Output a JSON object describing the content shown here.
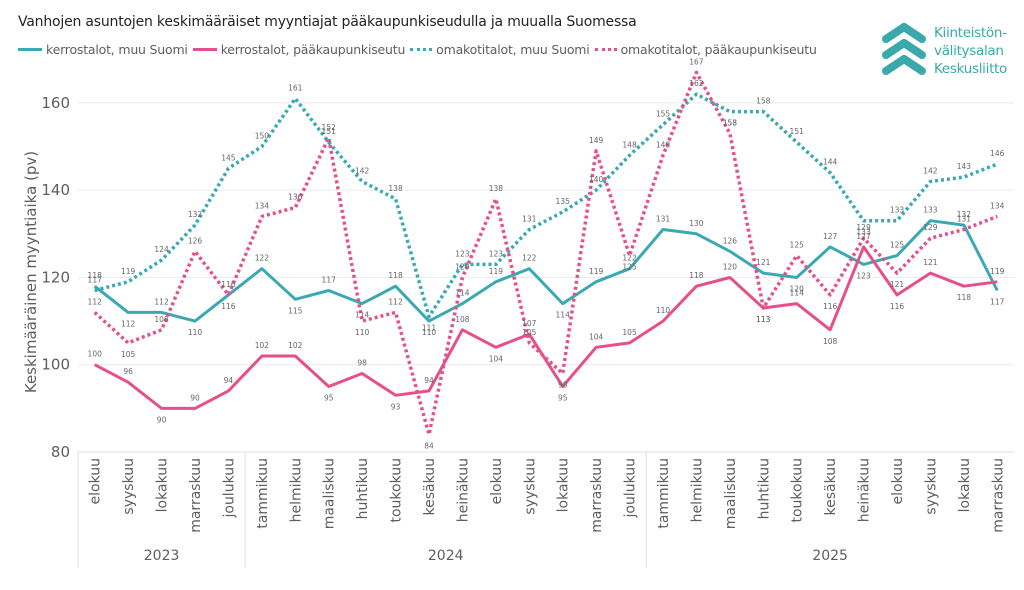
{
  "header": {
    "title": "Vanhojen asuntojen keskimääräiset myyntiajat pääkaupunkiseudulla ja muualla Suomessa"
  },
  "logo": {
    "icon": "chevrons-up-icon",
    "line1": "Kiinteistön-",
    "line2": "välitysalan",
    "line3": "Keskusliitto",
    "color": "#3aa9a9"
  },
  "chart_data": {
    "type": "line",
    "title": "Vanhojen asuntojen keskimääräiset myyntiajat pääkaupunkiseudulla ja muualla Suomessa",
    "xlabel": "",
    "ylabel": "Keskimääräinen myyntiaika (pv)",
    "ylim": [
      80,
      168
    ],
    "yticks": [
      80,
      100,
      120,
      140,
      160
    ],
    "grid": true,
    "legend_position": "top-left",
    "categories": [
      "elokuu",
      "syyskuu",
      "lokakuu",
      "marraskuu",
      "joulukuu",
      "tammikuu",
      "helmikuu",
      "maaliskuu",
      "huhtikuu",
      "toukokuu",
      "kesäkuu",
      "heinäkuu",
      "elokuu",
      "syyskuu",
      "lokakuu",
      "marraskuu",
      "joulukuu",
      "tammikuu",
      "helmikuu",
      "maaliskuu",
      "huhtikuu",
      "toukokuu",
      "kesäkuu",
      "heinäkuu",
      "elokuu",
      "syyskuu",
      "lokakuu",
      "marraskuu"
    ],
    "year_groups": [
      {
        "label": "2023",
        "start": 0,
        "count": 5
      },
      {
        "label": "2024",
        "start": 5,
        "count": 12
      },
      {
        "label": "2025",
        "start": 17,
        "count": 11
      }
    ],
    "series": [
      {
        "name": "kerrostalot, muu Suomi",
        "color": "#3aa9b4",
        "style": "solid",
        "values": [
          118,
          112,
          112,
          110,
          116,
          122,
          115,
          117,
          114,
          118,
          110,
          114,
          119,
          122,
          114,
          119,
          122,
          131,
          130,
          126,
          121,
          120,
          127,
          123,
          125,
          133,
          132,
          117
        ]
      },
      {
        "name": "kerrostalot, pääkaupunkiseutu",
        "color": "#e6508a",
        "style": "solid",
        "values": [
          100,
          96,
          90,
          90,
          94,
          102,
          102,
          95,
          98,
          93,
          94,
          108,
          104,
          107,
          95,
          104,
          105,
          110,
          118,
          120,
          113,
          114,
          108,
          127,
          116,
          121,
          118,
          119
        ]
      },
      {
        "name": "omakotitalot, muu Suomi",
        "color": "#3aa9b4",
        "style": "dotted",
        "values": [
          117,
          119,
          124,
          132,
          145,
          150,
          161,
          151,
          142,
          138,
          111,
          123,
          123,
          131,
          135,
          140,
          148,
          155,
          162,
          158,
          158,
          151,
          144,
          133,
          133,
          142,
          143,
          146
        ]
      },
      {
        "name": "omakotitalot, pääkaupunkiseutu",
        "color": "#e6508a",
        "style": "dotted",
        "values": [
          112,
          105,
          108,
          126,
          116,
          134,
          136,
          152,
          110,
          112,
          84,
          120,
          138,
          105,
          98,
          149,
          125,
          148,
          167,
          153,
          113,
          125,
          116,
          129,
          121,
          129,
          131,
          134
        ]
      }
    ]
  }
}
